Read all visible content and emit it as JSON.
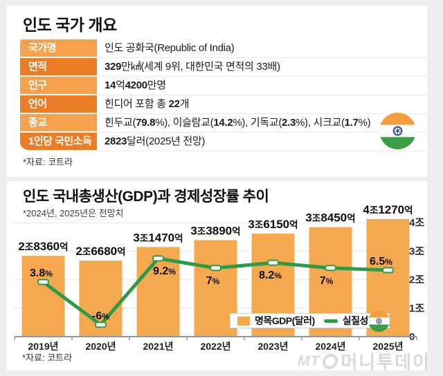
{
  "overview": {
    "title": "인도 국가 개요",
    "source_note": "*자료: 코트라",
    "table": {
      "rows": [
        {
          "label": "국가명",
          "segments": [
            {
              "t": "인도 공화국(Republic of India)",
              "b": false
            }
          ]
        },
        {
          "label": "면적",
          "segments": [
            {
              "t": "329",
              "b": true
            },
            {
              "t": "만㎢(세계 9위, 대한민국 면적의 33배)",
              "b": false
            }
          ]
        },
        {
          "label": "인구",
          "segments": [
            {
              "t": "14",
              "b": true
            },
            {
              "t": "억",
              "b": false
            },
            {
              "t": "4200",
              "b": true
            },
            {
              "t": "만명",
              "b": false
            }
          ]
        },
        {
          "label": "언어",
          "segments": [
            {
              "t": "힌디어 포함 총 ",
              "b": false
            },
            {
              "t": "22",
              "b": true
            },
            {
              "t": "개",
              "b": false
            }
          ]
        },
        {
          "label": "종교",
          "segments": [
            {
              "t": "힌두교(",
              "b": false
            },
            {
              "t": "79.8",
              "b": true
            },
            {
              "t": "%), 이슬람교(",
              "b": false
            },
            {
              "t": "14.2",
              "b": true
            },
            {
              "t": "%), 기독교(",
              "b": false
            },
            {
              "t": "2.3",
              "b": true
            },
            {
              "t": "%), 시크교(",
              "b": false
            },
            {
              "t": "1.7",
              "b": true
            },
            {
              "t": "%)",
              "b": false
            }
          ]
        },
        {
          "label": "1인당 국민소득",
          "segments": [
            {
              "t": "2823",
              "b": true
            },
            {
              "t": "달러(2025년 전망)",
              "b": false
            }
          ]
        }
      ]
    }
  },
  "gdp_section": {
    "title": "인도 국내총생산(GDP)과 경제성장률 추이",
    "subtitle": "*2024년, 2025년은 전망치",
    "source_note": "*자료: 코트라",
    "legend": {
      "gdp_label": "명목GDP(달러)",
      "growth_label": "실질성장률"
    },
    "watermark": {
      "prefix": "MT",
      "brand": "머니투데이"
    }
  },
  "chart_data": {
    "type": "bar",
    "title": "인도 국내총생산(GDP)과 경제성장률 추이",
    "subtitle": "*2024년, 2025년은 전망치",
    "categories": [
      "2019년",
      "2020년",
      "2021년",
      "2022년",
      "2023년",
      "2024년",
      "2025년"
    ],
    "series": [
      {
        "name": "명목GDP(달러)",
        "type": "bar",
        "unit": "조(trillion USD)",
        "values": [
          2.836,
          2.668,
          3.147,
          3.389,
          3.615,
          3.845,
          4.127
        ],
        "data_labels": [
          "2조8360억",
          "2조6680억",
          "3조1470억",
          "3조3890억",
          "3조6150억",
          "3조8450억",
          "4조1270억"
        ],
        "color": "#F6A84E",
        "axis": "right"
      },
      {
        "name": "실질성장률",
        "type": "line",
        "unit": "%",
        "values": [
          3.8,
          -6,
          9.2,
          7,
          8.2,
          7,
          6.5
        ],
        "data_labels": [
          "3.8%",
          "-6%",
          "9.2%",
          "7%",
          "8.2%",
          "7%",
          "6.5%"
        ],
        "label_placement": [
          "above",
          "above",
          "below",
          "below",
          "below",
          "below",
          "above"
        ],
        "color": "#2B9B45"
      }
    ],
    "right_axis": {
      "ylim": [
        0,
        4.45
      ],
      "ticks": [
        {
          "value": 0,
          "label": "0"
        },
        {
          "value": 1,
          "label": "1조"
        },
        {
          "value": 2,
          "label": "2조"
        },
        {
          "value": 3,
          "label": "3조"
        },
        {
          "value": 4,
          "label": "4조"
        }
      ]
    },
    "grid": "horizontal",
    "legend_position": "inside-bottom-right"
  }
}
